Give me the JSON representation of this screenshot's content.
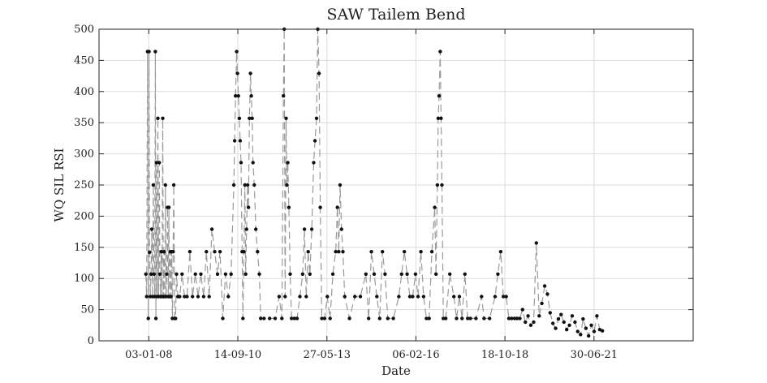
{
  "chart_data": {
    "type": "line",
    "title": "SAW Tailem Bend",
    "xlabel": "Date",
    "ylabel": "WQ SIL RSI",
    "ylim": [
      0,
      500
    ],
    "yticks": [
      0,
      50,
      100,
      150,
      200,
      250,
      300,
      350,
      400,
      450,
      500
    ],
    "xlim": [
      "2006-07-01",
      "2024-07-01"
    ],
    "xtick_dates": [
      "2008-01-03",
      "2010-09-14",
      "2013-05-27",
      "2016-02-06",
      "2018-10-18",
      "2021-06-30"
    ],
    "xtick_labels": [
      "03-01-08",
      "14-09-10",
      "27-05-13",
      "06-02-16",
      "18-10-18",
      "30-06-21"
    ],
    "grid": true,
    "series": [
      {
        "color": "#9a9a9a",
        "marker_color": "#111111",
        "points": [
          [
            "2007-12-01",
            107
          ],
          [
            "2007-12-10",
            71
          ],
          [
            "2007-12-20",
            464
          ],
          [
            "2007-12-28",
            36
          ],
          [
            "2008-01-05",
            464
          ],
          [
            "2008-01-12",
            142
          ],
          [
            "2008-01-20",
            71
          ],
          [
            "2008-01-28",
            107
          ],
          [
            "2008-02-05",
            179
          ],
          [
            "2008-02-14",
            71
          ],
          [
            "2008-02-22",
            250
          ],
          [
            "2008-03-01",
            107
          ],
          [
            "2008-03-08",
            71
          ],
          [
            "2008-03-15",
            464
          ],
          [
            "2008-03-22",
            36
          ],
          [
            "2008-03-29",
            286
          ],
          [
            "2008-04-05",
            71
          ],
          [
            "2008-04-12",
            357
          ],
          [
            "2008-04-20",
            71
          ],
          [
            "2008-04-28",
            286
          ],
          [
            "2008-05-05",
            107
          ],
          [
            "2008-05-12",
            71
          ],
          [
            "2008-05-20",
            143
          ],
          [
            "2008-05-28",
            71
          ],
          [
            "2008-06-05",
            357
          ],
          [
            "2008-06-12",
            71
          ],
          [
            "2008-06-20",
            143
          ],
          [
            "2008-06-28",
            71
          ],
          [
            "2008-07-05",
            250
          ],
          [
            "2008-07-12",
            71
          ],
          [
            "2008-07-20",
            107
          ],
          [
            "2008-07-28",
            214
          ],
          [
            "2008-08-05",
            71
          ],
          [
            "2008-08-12",
            214
          ],
          [
            "2008-08-20",
            71
          ],
          [
            "2008-08-28",
            143
          ],
          [
            "2008-09-05",
            71
          ],
          [
            "2008-09-12",
            143
          ],
          [
            "2008-09-20",
            36
          ],
          [
            "2008-09-28",
            143
          ],
          [
            "2008-10-05",
            250
          ],
          [
            "2008-10-15",
            36
          ],
          [
            "2008-10-25",
            36
          ],
          [
            "2008-11-05",
            107
          ],
          [
            "2008-11-20",
            71
          ],
          [
            "2008-12-10",
            71
          ],
          [
            "2009-01-05",
            107
          ],
          [
            "2009-02-01",
            71
          ],
          [
            "2009-03-01",
            71
          ],
          [
            "2009-04-01",
            143
          ],
          [
            "2009-05-01",
            71
          ],
          [
            "2009-06-01",
            107
          ],
          [
            "2009-07-01",
            71
          ],
          [
            "2009-08-01",
            107
          ],
          [
            "2009-09-01",
            71
          ],
          [
            "2009-10-01",
            143
          ],
          [
            "2009-11-01",
            71
          ],
          [
            "2009-12-01",
            179
          ],
          [
            "2010-01-01",
            143
          ],
          [
            "2010-02-01",
            107
          ],
          [
            "2010-03-01",
            143
          ],
          [
            "2010-04-01",
            36
          ],
          [
            "2010-05-01",
            107
          ],
          [
            "2010-06-01",
            71
          ],
          [
            "2010-07-01",
            107
          ],
          [
            "2010-08-01",
            250
          ],
          [
            "2010-08-10",
            321
          ],
          [
            "2010-08-20",
            393
          ],
          [
            "2010-09-01",
            464
          ],
          [
            "2010-09-10",
            429
          ],
          [
            "2010-09-20",
            393
          ],
          [
            "2010-10-01",
            357
          ],
          [
            "2010-10-10",
            321
          ],
          [
            "2010-10-20",
            286
          ],
          [
            "2010-11-01",
            143
          ],
          [
            "2010-11-10",
            36
          ],
          [
            "2010-11-20",
            143
          ],
          [
            "2010-12-01",
            250
          ],
          [
            "2010-12-10",
            107
          ],
          [
            "2010-12-20",
            179
          ],
          [
            "2011-01-01",
            250
          ],
          [
            "2011-01-10",
            214
          ],
          [
            "2011-01-20",
            357
          ],
          [
            "2011-02-01",
            429
          ],
          [
            "2011-02-10",
            393
          ],
          [
            "2011-02-20",
            357
          ],
          [
            "2011-03-01",
            286
          ],
          [
            "2011-03-15",
            250
          ],
          [
            "2011-04-01",
            179
          ],
          [
            "2011-04-20",
            143
          ],
          [
            "2011-05-10",
            107
          ],
          [
            "2011-05-25",
            36
          ],
          [
            "2011-07-01",
            36
          ],
          [
            "2011-09-01",
            36
          ],
          [
            "2011-11-01",
            36
          ],
          [
            "2011-12-15",
            71
          ],
          [
            "2012-01-15",
            36
          ],
          [
            "2012-02-01",
            393
          ],
          [
            "2012-02-10",
            500
          ],
          [
            "2012-02-20",
            71
          ],
          [
            "2012-03-01",
            357
          ],
          [
            "2012-03-10",
            250
          ],
          [
            "2012-03-20",
            286
          ],
          [
            "2012-04-01",
            214
          ],
          [
            "2012-04-15",
            107
          ],
          [
            "2012-05-01",
            36
          ],
          [
            "2012-06-01",
            36
          ],
          [
            "2012-07-01",
            36
          ],
          [
            "2012-08-01",
            71
          ],
          [
            "2012-09-01",
            107
          ],
          [
            "2012-09-20",
            179
          ],
          [
            "2012-10-10",
            71
          ],
          [
            "2012-11-01",
            143
          ],
          [
            "2012-11-20",
            107
          ],
          [
            "2012-12-10",
            179
          ],
          [
            "2013-01-01",
            286
          ],
          [
            "2013-01-15",
            321
          ],
          [
            "2013-02-01",
            357
          ],
          [
            "2013-02-15",
            500
          ],
          [
            "2013-03-01",
            429
          ],
          [
            "2013-03-15",
            214
          ],
          [
            "2013-04-01",
            36
          ],
          [
            "2013-05-01",
            36
          ],
          [
            "2013-06-01",
            71
          ],
          [
            "2013-07-01",
            36
          ],
          [
            "2013-08-01",
            107
          ],
          [
            "2013-09-01",
            143
          ],
          [
            "2013-09-20",
            214
          ],
          [
            "2013-10-05",
            143
          ],
          [
            "2013-10-20",
            250
          ],
          [
            "2013-11-05",
            179
          ],
          [
            "2013-11-20",
            143
          ],
          [
            "2013-12-10",
            71
          ],
          [
            "2014-02-01",
            36
          ],
          [
            "2014-04-01",
            71
          ],
          [
            "2014-06-01",
            71
          ],
          [
            "2014-08-01",
            107
          ],
          [
            "2014-09-01",
            36
          ],
          [
            "2014-10-01",
            143
          ],
          [
            "2014-11-01",
            107
          ],
          [
            "2014-12-01",
            71
          ],
          [
            "2015-01-01",
            36
          ],
          [
            "2015-02-01",
            143
          ],
          [
            "2015-03-01",
            107
          ],
          [
            "2015-04-01",
            36
          ],
          [
            "2015-06-01",
            36
          ],
          [
            "2015-08-01",
            71
          ],
          [
            "2015-09-01",
            107
          ],
          [
            "2015-10-01",
            143
          ],
          [
            "2015-11-01",
            107
          ],
          [
            "2015-12-01",
            71
          ],
          [
            "2016-01-01",
            71
          ],
          [
            "2016-02-01",
            107
          ],
          [
            "2016-03-01",
            71
          ],
          [
            "2016-04-01",
            143
          ],
          [
            "2016-05-01",
            71
          ],
          [
            "2016-06-01",
            36
          ],
          [
            "2016-07-01",
            36
          ],
          [
            "2016-08-01",
            143
          ],
          [
            "2016-09-01",
            214
          ],
          [
            "2016-09-15",
            107
          ],
          [
            "2016-10-01",
            250
          ],
          [
            "2016-10-10",
            357
          ],
          [
            "2016-10-20",
            393
          ],
          [
            "2016-11-01",
            464
          ],
          [
            "2016-11-10",
            357
          ],
          [
            "2016-11-20",
            250
          ],
          [
            "2016-12-05",
            36
          ],
          [
            "2017-01-01",
            36
          ],
          [
            "2017-02-15",
            107
          ],
          [
            "2017-04-01",
            71
          ],
          [
            "2017-05-01",
            36
          ],
          [
            "2017-06-01",
            71
          ],
          [
            "2017-07-01",
            36
          ],
          [
            "2017-08-01",
            107
          ],
          [
            "2017-09-01",
            36
          ],
          [
            "2017-10-01",
            36
          ],
          [
            "2017-12-01",
            36
          ],
          [
            "2018-02-01",
            71
          ],
          [
            "2018-03-01",
            36
          ],
          [
            "2018-05-01",
            36
          ],
          [
            "2018-07-01",
            71
          ],
          [
            "2018-08-01",
            107
          ],
          [
            "2018-09-01",
            143
          ],
          [
            "2018-10-01",
            71
          ],
          [
            "2018-11-01",
            71
          ],
          [
            "2018-12-01",
            36
          ],
          [
            "2019-01-01",
            36
          ],
          [
            "2019-02-01",
            36
          ],
          [
            "2019-03-01",
            36
          ],
          [
            "2019-04-01",
            36
          ],
          [
            "2019-05-01",
            50
          ],
          [
            "2019-06-01",
            30
          ],
          [
            "2019-07-01",
            40
          ],
          [
            "2019-08-01",
            25
          ],
          [
            "2019-09-01",
            30
          ],
          [
            "2019-10-01",
            157
          ],
          [
            "2019-11-01",
            40
          ],
          [
            "2019-12-01",
            60
          ],
          [
            "2020-01-01",
            88
          ],
          [
            "2020-02-01",
            75
          ],
          [
            "2020-03-01",
            45
          ],
          [
            "2020-04-01",
            28
          ],
          [
            "2020-05-01",
            20
          ],
          [
            "2020-06-01",
            35
          ],
          [
            "2020-07-01",
            42
          ],
          [
            "2020-08-01",
            30
          ],
          [
            "2020-09-01",
            18
          ],
          [
            "2020-10-01",
            25
          ],
          [
            "2020-11-01",
            40
          ],
          [
            "2020-12-01",
            30
          ],
          [
            "2021-01-01",
            15
          ],
          [
            "2021-02-01",
            10
          ],
          [
            "2021-03-01",
            35
          ],
          [
            "2021-04-01",
            20
          ],
          [
            "2021-05-01",
            8
          ],
          [
            "2021-06-01",
            25
          ],
          [
            "2021-07-01",
            15
          ],
          [
            "2021-08-01",
            40
          ],
          [
            "2021-09-01",
            18
          ],
          [
            "2021-10-01",
            16
          ]
        ]
      }
    ]
  }
}
